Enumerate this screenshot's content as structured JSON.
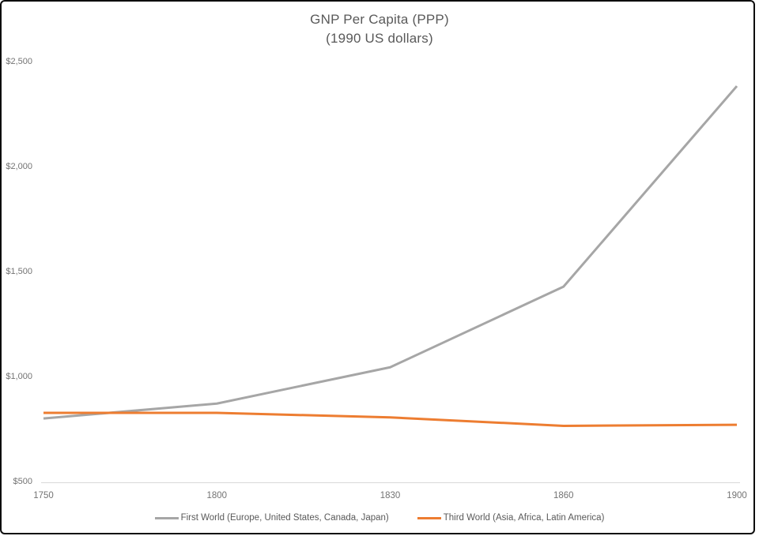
{
  "chart_data": {
    "type": "line",
    "title": "GNP Per Capita (PPP)",
    "subtitle": "(1990 US dollars)",
    "categories": [
      "1750",
      "1800",
      "1830",
      "1860",
      "1900"
    ],
    "series": [
      {
        "id": "first-world",
        "name": "First World (Europe, United States, Canada, Japan)",
        "color": "#a6a6a6",
        "values": [
          804,
          875,
          1048,
          1432,
          2387
        ]
      },
      {
        "id": "third-world",
        "name": "Third World (Asia, Africa, Latin America)",
        "color": "#ed7d31",
        "values": [
          831,
          831,
          809,
          769,
          774
        ]
      }
    ],
    "y_ticks": [
      {
        "value": 500,
        "label": "$500"
      },
      {
        "value": 1000,
        "label": "$1,000"
      },
      {
        "value": 1500,
        "label": "$1,500"
      },
      {
        "value": 2000,
        "label": "$2,000"
      },
      {
        "value": 2500,
        "label": "$2,500"
      }
    ],
    "ylim": [
      500,
      2500
    ],
    "xlabel": "",
    "ylabel": "",
    "grid": false,
    "legend_position": "bottom",
    "axis_line_color": "#d9d9d9",
    "title_color": "#595959",
    "tick_label_color": "#737373"
  }
}
